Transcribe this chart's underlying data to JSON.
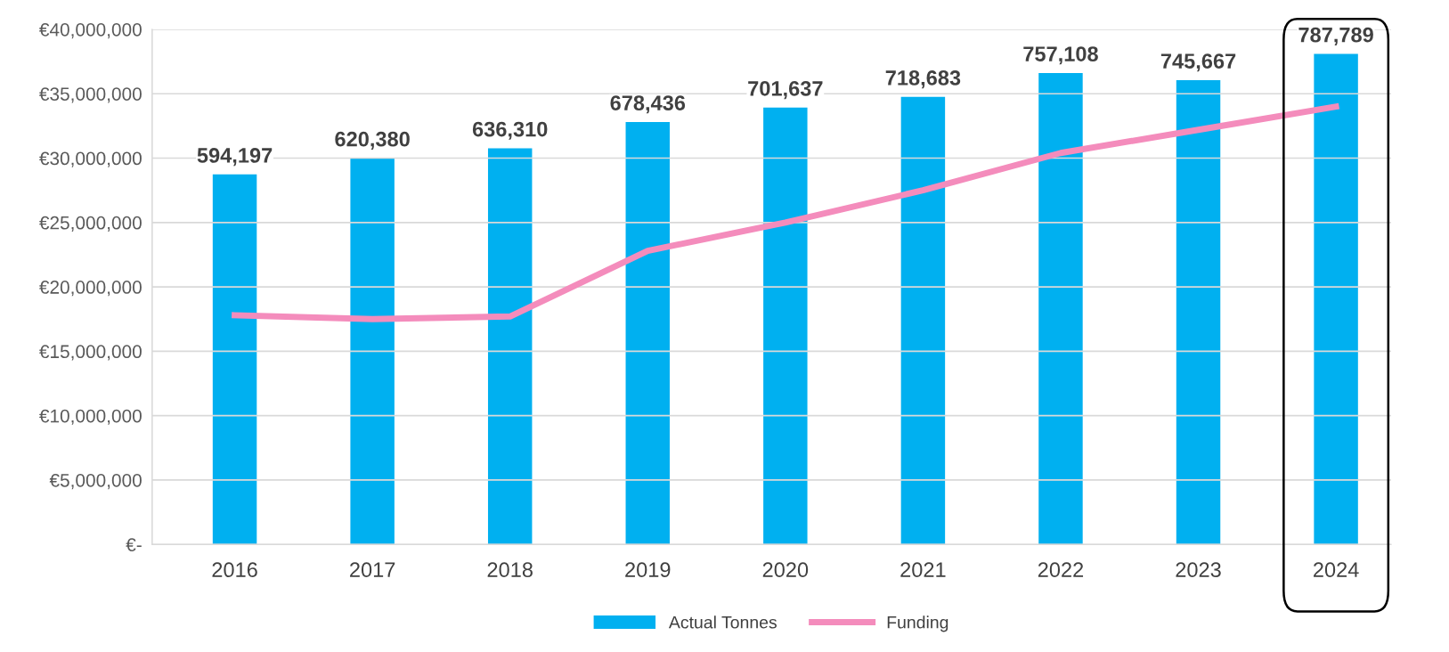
{
  "chart_data": {
    "type": "bar",
    "categories": [
      "2016",
      "2017",
      "2018",
      "2019",
      "2020",
      "2021",
      "2022",
      "2023",
      "2024"
    ],
    "series": [
      {
        "name": "Actual Tonnes",
        "axis": "y2",
        "color": "#00b0f0",
        "values": [
          594197,
          620380,
          636310,
          678436,
          701637,
          718683,
          757108,
          745667,
          787789
        ],
        "value_labels": [
          "594,197",
          "620,380",
          "636,310",
          "678,436",
          "701,637",
          "718,683",
          "757,108",
          "745,667",
          "787,789"
        ]
      },
      {
        "name": "Funding",
        "type": "line",
        "axis": "y",
        "color": "#f48cbc",
        "values": [
          17800000,
          17500000,
          17700000,
          22800000,
          25000000,
          27500000,
          30400000,
          32200000,
          34000000
        ]
      }
    ],
    "ylim": [
      0,
      40000000
    ],
    "yticks": [
      {
        "value": 0,
        "label": "€-"
      },
      {
        "value": 5000000,
        "label": "€5,000,000"
      },
      {
        "value": 10000000,
        "label": "€10,000,000"
      },
      {
        "value": 15000000,
        "label": "€15,000,000"
      },
      {
        "value": 20000000,
        "label": "€20,000,000"
      },
      {
        "value": 25000000,
        "label": "€25,000,000"
      },
      {
        "value": 30000000,
        "label": "€30,000,000"
      },
      {
        "value": 35000000,
        "label": "€35,000,000"
      },
      {
        "value": 40000000,
        "label": "€40,000,000"
      }
    ],
    "tick_labels": "xy",
    "grid": "y",
    "legend": "bottom",
    "marker": "none",
    "line_style": "solid"
  }
}
